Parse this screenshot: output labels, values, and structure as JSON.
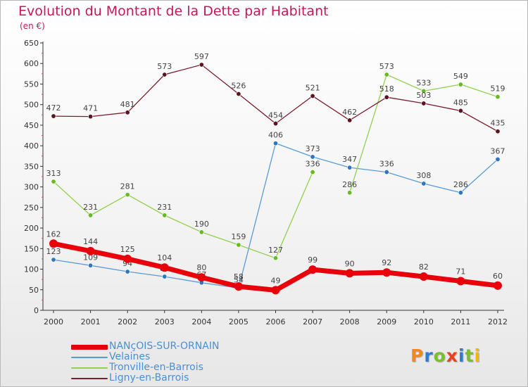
{
  "title": "Evolution du Montant de la Dette par Habitant",
  "unit_label": "(en €)",
  "brand": {
    "letters": [
      "P",
      "r",
      "o",
      "x",
      "i",
      "t",
      "i"
    ],
    "colors": [
      "#f08a1c",
      "#2e7bd0",
      "#7bbf2a",
      "#e8421e",
      "#2e7bd0",
      "#7bbf2a",
      "#f5b800"
    ]
  },
  "chart_data": {
    "type": "line",
    "title": "Evolution du Montant de la Dette par Habitant",
    "subtitle": "(en €)",
    "xlabel": "",
    "ylabel": "",
    "ylim": [
      0,
      650
    ],
    "yticks": [
      0,
      50,
      100,
      150,
      200,
      250,
      300,
      350,
      400,
      450,
      500,
      550,
      600,
      650
    ],
    "grid": false,
    "legend_position": "bottom-left",
    "categories": [
      "2000",
      "2001",
      "2002",
      "2003",
      "2004",
      "2005",
      "2006",
      "2007",
      "2008",
      "2009",
      "2010",
      "2011",
      "2012"
    ],
    "series": [
      {
        "name": "NANçOIS-SUR-ORNAIN",
        "color": "#e8000b",
        "marker": "#e8000b",
        "emphasis": true,
        "values": [
          162,
          144,
          125,
          104,
          80,
          58,
          49,
          99,
          90,
          92,
          82,
          71,
          60
        ]
      },
      {
        "name": "Velaines",
        "color": "#5b9bd5",
        "marker": "#2e75c2",
        "values": [
          123,
          109,
          94,
          82,
          67,
          54,
          406,
          373,
          347,
          336,
          308,
          286,
          367
        ]
      },
      {
        "name": "Tronville-en-Barrois",
        "color": "#92d050",
        "marker": "#66bb22",
        "segments_break_after": [
          7
        ],
        "values": [
          313,
          231,
          281,
          231,
          190,
          159,
          127,
          336,
          286,
          573,
          533,
          549,
          519
        ]
      },
      {
        "name": "Ligny-en-Barrois",
        "color": "#7a1e2e",
        "marker": "#5a1520",
        "values": [
          472,
          471,
          481,
          573,
          597,
          526,
          454,
          521,
          462,
          518,
          503,
          485,
          435
        ]
      }
    ]
  }
}
